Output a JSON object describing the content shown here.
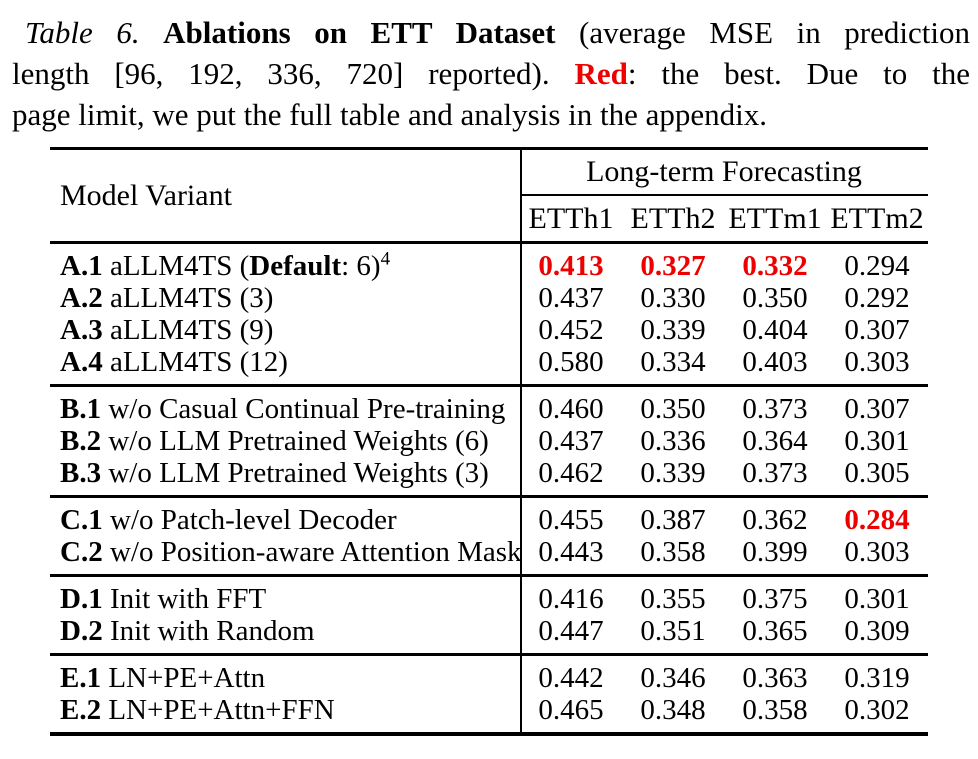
{
  "caption": {
    "lines": [
      {
        "segments": [
          {
            "text": "Table 6. ",
            "style": "italic"
          },
          {
            "text": "Ablations on ETT Dataset",
            "style": "bold"
          },
          {
            "text": " (average MSE in prediction",
            "style": "normal"
          }
        ]
      },
      {
        "segments": [
          {
            "text": "length [96, 192, 336, 720] reported). ",
            "style": "normal"
          },
          {
            "text": "Red",
            "style": "boldred"
          },
          {
            "text": ": the best. Due to the",
            "style": "normal"
          }
        ]
      },
      {
        "segments": [
          {
            "text": "page limit, we put the full table and analysis in the appendix.",
            "style": "normal"
          }
        ]
      }
    ]
  },
  "table": {
    "header": {
      "model_variant": "Model Variant",
      "group_header": "Long-term Forecasting",
      "columns": [
        "ETTh1",
        "ETTh2",
        "ETTm1",
        "ETTm2"
      ]
    },
    "groups": [
      {
        "key": "A",
        "rows": [
          {
            "id": "A.1",
            "parts": [
              {
                "text": " aLLM4TS (",
                "bold": false
              },
              {
                "text": "Default",
                "bold": true
              },
              {
                "text": ": 6)",
                "bold": false
              }
            ],
            "sup": "4",
            "values": [
              "0.413",
              "0.327",
              "0.332",
              "0.294"
            ],
            "red": [
              0,
              1,
              2
            ]
          },
          {
            "id": "A.2",
            "parts": [
              {
                "text": " aLLM4TS (3)",
                "bold": false
              }
            ],
            "values": [
              "0.437",
              "0.330",
              "0.350",
              "0.292"
            ],
            "red": []
          },
          {
            "id": "A.3",
            "parts": [
              {
                "text": " aLLM4TS (9)",
                "bold": false
              }
            ],
            "values": [
              "0.452",
              "0.339",
              "0.404",
              "0.307"
            ],
            "red": []
          },
          {
            "id": "A.4",
            "parts": [
              {
                "text": " aLLM4TS (12)",
                "bold": false
              }
            ],
            "values": [
              "0.580",
              "0.334",
              "0.403",
              "0.303"
            ],
            "red": []
          }
        ]
      },
      {
        "key": "B",
        "rows": [
          {
            "id": "B.1",
            "parts": [
              {
                "text": " w/o Casual Continual Pre-training",
                "bold": false
              }
            ],
            "values": [
              "0.460",
              "0.350",
              "0.373",
              "0.307"
            ],
            "red": []
          },
          {
            "id": "B.2",
            "parts": [
              {
                "text": " w/o LLM Pretrained Weights (6)",
                "bold": false
              }
            ],
            "values": [
              "0.437",
              "0.336",
              "0.364",
              "0.301"
            ],
            "red": []
          },
          {
            "id": "B.3",
            "parts": [
              {
                "text": " w/o LLM Pretrained Weights (3)",
                "bold": false
              }
            ],
            "values": [
              "0.462",
              "0.339",
              "0.373",
              "0.305"
            ],
            "red": []
          }
        ]
      },
      {
        "key": "C",
        "rows": [
          {
            "id": "C.1",
            "parts": [
              {
                "text": " w/o Patch-level Decoder",
                "bold": false
              }
            ],
            "values": [
              "0.455",
              "0.387",
              "0.362",
              "0.284"
            ],
            "red": [
              3
            ]
          },
          {
            "id": "C.2",
            "parts": [
              {
                "text": " w/o Position-aware Attention Mask",
                "bold": false
              }
            ],
            "values": [
              "0.443",
              "0.358",
              "0.399",
              "0.303"
            ],
            "red": []
          }
        ]
      },
      {
        "key": "D",
        "rows": [
          {
            "id": "D.1",
            "parts": [
              {
                "text": " Init with FFT",
                "bold": false
              }
            ],
            "values": [
              "0.416",
              "0.355",
              "0.375",
              "0.301"
            ],
            "red": []
          },
          {
            "id": "D.2",
            "parts": [
              {
                "text": " Init with Random",
                "bold": false
              }
            ],
            "values": [
              "0.447",
              "0.351",
              "0.365",
              "0.309"
            ],
            "red": []
          }
        ]
      },
      {
        "key": "E",
        "rows": [
          {
            "id": "E.1",
            "parts": [
              {
                "text": " LN+PE+Attn",
                "bold": false
              }
            ],
            "values": [
              "0.442",
              "0.346",
              "0.363",
              "0.319"
            ],
            "red": []
          },
          {
            "id": "E.2",
            "parts": [
              {
                "text": " LN+PE+Attn+FFN",
                "bold": false
              }
            ],
            "values": [
              "0.465",
              "0.348",
              "0.358",
              "0.302"
            ],
            "red": []
          }
        ]
      }
    ]
  },
  "colors": {
    "best_red": "#ee0000",
    "text": "#000000",
    "background": "#ffffff"
  }
}
